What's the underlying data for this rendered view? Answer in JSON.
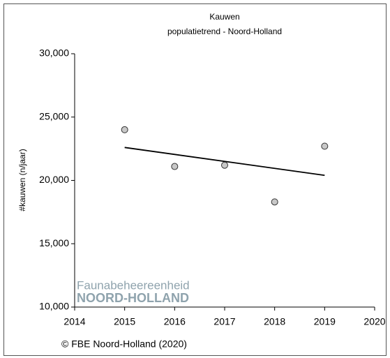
{
  "chart_data": {
    "type": "scatter",
    "title": "Kauwen",
    "subtitle": "populatietrend - Noord-Holland",
    "y_label": "#kauwen (n/jaar)",
    "x": [
      2015,
      2016,
      2017,
      2018,
      2019
    ],
    "values": [
      24000,
      21100,
      21200,
      18300,
      22700
    ],
    "color": "#c8c8c8",
    "trend": {
      "x": [
        2015,
        2019
      ],
      "values": [
        22600,
        20400
      ],
      "color": "#000000"
    },
    "xlim": [
      2014,
      2020
    ],
    "xticks": [
      2014,
      2015,
      2016,
      2017,
      2018,
      2019,
      2020
    ],
    "ylim": [
      10000,
      30000
    ],
    "yticks": [
      {
        "value": 10000,
        "label": "10,000"
      },
      {
        "value": 15000,
        "label": "15,000"
      },
      {
        "value": 20000,
        "label": "20,000"
      },
      {
        "value": 25000,
        "label": "25,000"
      },
      {
        "value": 30000,
        "label": "30,000"
      }
    ],
    "watermark": [
      "Faunabeheereenheid",
      "NOORD-HOLLAND"
    ],
    "footer": "© FBE Noord-Holland (2020)"
  }
}
